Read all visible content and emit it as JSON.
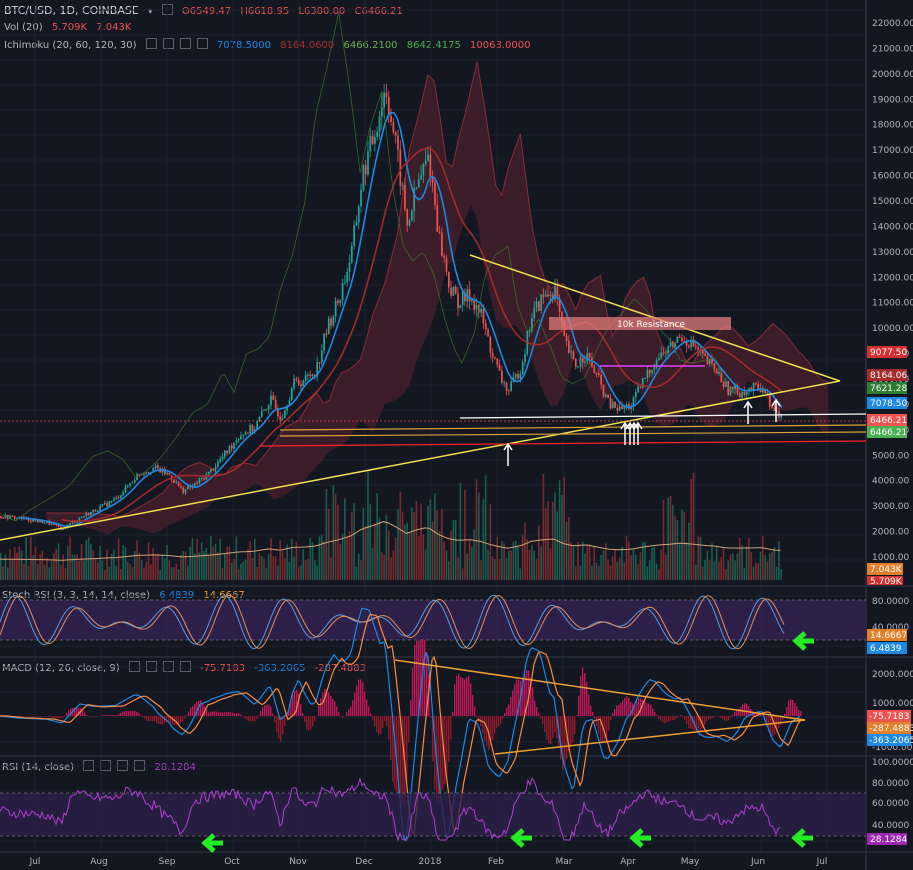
{
  "header": {
    "symbol": "BTC/USD, 1D, COINBASE",
    "open": "O6549.47",
    "high": "H6618.95",
    "low": "L6380.00",
    "close": "C6466.21",
    "vol_label": "Vol (20)",
    "vol_v1": "5.709K",
    "vol_v2": "7.043K",
    "ichi_label": "Ichimoku (20, 60, 120, 30)",
    "ichi_v1": "7078.5000",
    "ichi_v2": "8164.0600",
    "ichi_v3": "6466.2100",
    "ichi_v4": "8642.4175",
    "ichi_v5": "10063.0000",
    "stoch_label": "Stoch RSI (3, 3, 14, 14, close)",
    "stoch_v1": "6.4839",
    "stoch_v2": "14.6667",
    "macd_label": "MACD (12, 26, close, 9)",
    "macd_v1": "-75.7183",
    "macd_v2": "-363.2065",
    "macd_v3": "-287.4883",
    "rsi_label": "RSI (14, close)",
    "rsi_v1": "28.1284"
  },
  "annotation": "10k Resistance",
  "chart_data": [
    {
      "type": "candlestick",
      "name": "BTC/USD price",
      "x_months": [
        "Jul",
        "Aug",
        "Sep",
        "Oct",
        "Nov",
        "Dec",
        "2018",
        "Feb",
        "Mar",
        "Apr",
        "May",
        "Jun",
        "Jul"
      ],
      "y_ticks": [
        1000,
        2000,
        3000,
        4000,
        5000,
        6000,
        7000,
        8000,
        9000,
        10000,
        11000,
        12000,
        13000,
        14000,
        15000,
        16000,
        17000,
        18000,
        19000,
        20000,
        21000,
        22000
      ],
      "ylim": [
        0,
        22500
      ],
      "close_path": [
        [
          0,
          2600
        ],
        [
          15,
          2500
        ],
        [
          30,
          2350
        ],
        [
          40,
          2100
        ],
        [
          50,
          2500
        ],
        [
          60,
          2800
        ],
        [
          75,
          3300
        ],
        [
          90,
          4300
        ],
        [
          100,
          4500
        ],
        [
          110,
          4200
        ],
        [
          118,
          3600
        ],
        [
          125,
          3800
        ],
        [
          135,
          4300
        ],
        [
          145,
          5000
        ],
        [
          155,
          5800
        ],
        [
          165,
          6100
        ],
        [
          175,
          7200
        ],
        [
          182,
          6500
        ],
        [
          190,
          7800
        ],
        [
          198,
          8000
        ],
        [
          205,
          8400
        ],
        [
          212,
          10000
        ],
        [
          220,
          11200
        ],
        [
          228,
          13000
        ],
        [
          235,
          16000
        ],
        [
          242,
          17500
        ],
        [
          250,
          19500
        ],
        [
          257,
          17000
        ],
        [
          264,
          14000
        ],
        [
          270,
          15500
        ],
        [
          278,
          16800
        ],
        [
          285,
          13500
        ],
        [
          292,
          11500
        ],
        [
          298,
          11000
        ],
        [
          305,
          11300
        ],
        [
          312,
          10500
        ],
        [
          319,
          9000
        ],
        [
          325,
          8000
        ],
        [
          330,
          7500
        ],
        [
          338,
          8500
        ],
        [
          345,
          10500
        ],
        [
          352,
          11200
        ],
        [
          360,
          11500
        ],
        [
          366,
          9500
        ],
        [
          373,
          8500
        ],
        [
          380,
          9000
        ],
        [
          388,
          8000
        ],
        [
          395,
          7000
        ],
        [
          402,
          6800
        ],
        [
          410,
          7000
        ],
        [
          418,
          8000
        ],
        [
          426,
          8800
        ],
        [
          434,
          9200
        ],
        [
          442,
          9700
        ],
        [
          450,
          9300
        ],
        [
          458,
          8700
        ],
        [
          465,
          8300
        ],
        [
          472,
          7600
        ],
        [
          480,
          7500
        ],
        [
          488,
          7600
        ],
        [
          495,
          7700
        ],
        [
          502,
          6700
        ],
        [
          508,
          6466
        ]
      ],
      "ema_labels": [
        "9077.50",
        "8164.06",
        "7621.28",
        "7078.50",
        "6466.21",
        "6466.21"
      ]
    },
    {
      "type": "line",
      "name": "Stoch RSI",
      "y_ticks": [
        40,
        80
      ],
      "values_label": [
        "14.6667",
        "6.4839"
      ]
    },
    {
      "type": "line",
      "name": "MACD",
      "y_ticks": [
        -2000,
        -1000,
        0,
        1000,
        2000
      ],
      "values_label": [
        "-75.7183",
        "-287.4883",
        "-363.2065"
      ]
    },
    {
      "type": "line",
      "name": "RSI",
      "y_ticks": [
        20,
        40,
        60,
        80,
        100
      ],
      "values_label": [
        "28.1284"
      ]
    }
  ],
  "price_axis_labels": [
    "22000.00",
    "21000.00",
    "20000.00",
    "19000.00",
    "18000.00",
    "17000.00",
    "16000.00",
    "15000.00",
    "14000.00",
    "13000.00",
    "12000.00",
    "11000.00",
    "10000.00",
    "9000.00",
    "8000.00",
    "7000.00",
    "6000.00",
    "5000.00",
    "4000.00",
    "3000.00",
    "2000.00",
    "1000.00"
  ],
  "vol_tags": [
    "7.043K",
    "5.709K"
  ],
  "stoch_axis": [
    "80.0000",
    "40.0000"
  ],
  "macd_axis": [
    "2000.0000",
    "1000.0000",
    "-1000.0000",
    "-2000.0000"
  ],
  "rsi_axis": [
    "100.0000",
    "80.0000",
    "60.0000",
    "40.0000",
    "20.0000"
  ],
  "months": [
    "Jul",
    "Aug",
    "Sep",
    "Oct",
    "Nov",
    "Dec",
    "2018",
    "Feb",
    "Mar",
    "Apr",
    "May",
    "Jun",
    "Jul"
  ],
  "colors": {
    "bg": "#131722",
    "up": "#26a69a",
    "down": "#ef5350",
    "yellow": "#f0e04a",
    "orange": "#f0a030",
    "cloud": "#7a2a3a",
    "blue": "#1e88e5",
    "green_arrow": "#22ee22",
    "purple": "#b040d0"
  }
}
